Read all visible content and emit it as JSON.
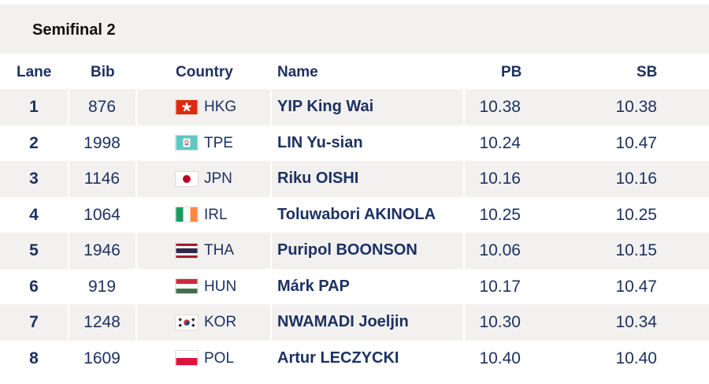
{
  "title": "Semifinal 2",
  "headers": {
    "lane": "Lane",
    "bib": "Bib",
    "country": "Country",
    "name": "Name",
    "pb": "PB",
    "sb": "SB"
  },
  "rows": [
    {
      "lane": "1",
      "bib": "876",
      "country": "HKG",
      "flag": "hkg-flag-icon",
      "name": "YIP King Wai",
      "pb": "10.38",
      "sb": "10.38"
    },
    {
      "lane": "2",
      "bib": "1998",
      "country": "TPE",
      "flag": "tpe-flag-icon",
      "name": "LIN Yu-sian",
      "pb": "10.24",
      "sb": "10.47"
    },
    {
      "lane": "3",
      "bib": "1146",
      "country": "JPN",
      "flag": "jpn-flag-icon",
      "name": "Riku OISHI",
      "pb": "10.16",
      "sb": "10.16"
    },
    {
      "lane": "4",
      "bib": "1064",
      "country": "IRL",
      "flag": "irl-flag-icon",
      "name": "Toluwabori AKINOLA",
      "pb": "10.25",
      "sb": "10.25"
    },
    {
      "lane": "5",
      "bib": "1946",
      "country": "THA",
      "flag": "tha-flag-icon",
      "name": "Puripol BOONSON",
      "pb": "10.06",
      "sb": "10.15"
    },
    {
      "lane": "6",
      "bib": "919",
      "country": "HUN",
      "flag": "hun-flag-icon",
      "name": "Márk PAP",
      "pb": "10.17",
      "sb": "10.47"
    },
    {
      "lane": "7",
      "bib": "1248",
      "country": "KOR",
      "flag": "kor-flag-icon",
      "name": "NWAMADI Joeljin",
      "pb": "10.30",
      "sb": "10.34"
    },
    {
      "lane": "8",
      "bib": "1609",
      "country": "POL",
      "flag": "pol-flag-icon",
      "name": "Artur LECZYCKI",
      "pb": "10.40",
      "sb": "10.40"
    }
  ],
  "colors": {
    "text": "#1d3162",
    "stripe": "#f2f1ef"
  }
}
